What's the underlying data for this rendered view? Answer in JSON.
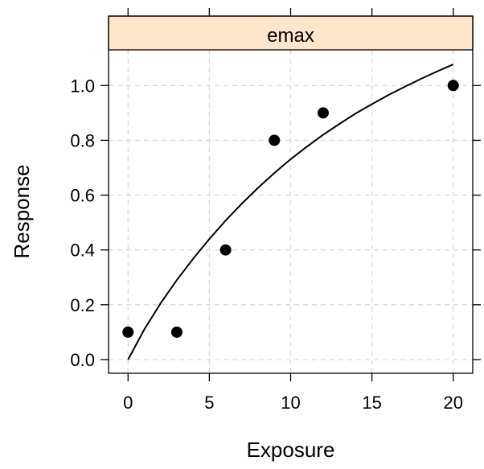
{
  "chart_data": {
    "type": "scatter",
    "title": "",
    "panel_label": "emax",
    "xlabel": "Exposure",
    "ylabel": "Response",
    "xlim": [
      -1.2,
      21.2
    ],
    "ylim": [
      -0.05,
      1.13
    ],
    "x_ticks": [
      0,
      5,
      10,
      15,
      20
    ],
    "x_tick_labels": [
      "0",
      "5",
      "10",
      "15",
      "20"
    ],
    "y_ticks": [
      0.0,
      0.2,
      0.4,
      0.6,
      0.8,
      1.0
    ],
    "y_tick_labels": [
      "0.0",
      "0.2",
      "0.4",
      "0.6",
      "0.8",
      "1.0"
    ],
    "grid": true,
    "points": {
      "x": [
        0,
        3,
        6,
        9,
        12,
        20
      ],
      "y": [
        0.1,
        0.1,
        0.4,
        0.8,
        0.9,
        1.0
      ]
    },
    "fitted_curve": {
      "x": [
        0,
        1,
        2,
        3,
        4,
        5,
        6,
        7,
        8,
        9,
        10,
        11,
        12,
        13,
        14,
        15,
        16,
        17,
        18,
        19,
        20
      ],
      "y": [
        0.0,
        0.11,
        0.205,
        0.29,
        0.368,
        0.44,
        0.507,
        0.569,
        0.627,
        0.681,
        0.731,
        0.777,
        0.82,
        0.86,
        0.898,
        0.932,
        0.965,
        0.995,
        1.024,
        1.051,
        1.077
      ]
    }
  }
}
